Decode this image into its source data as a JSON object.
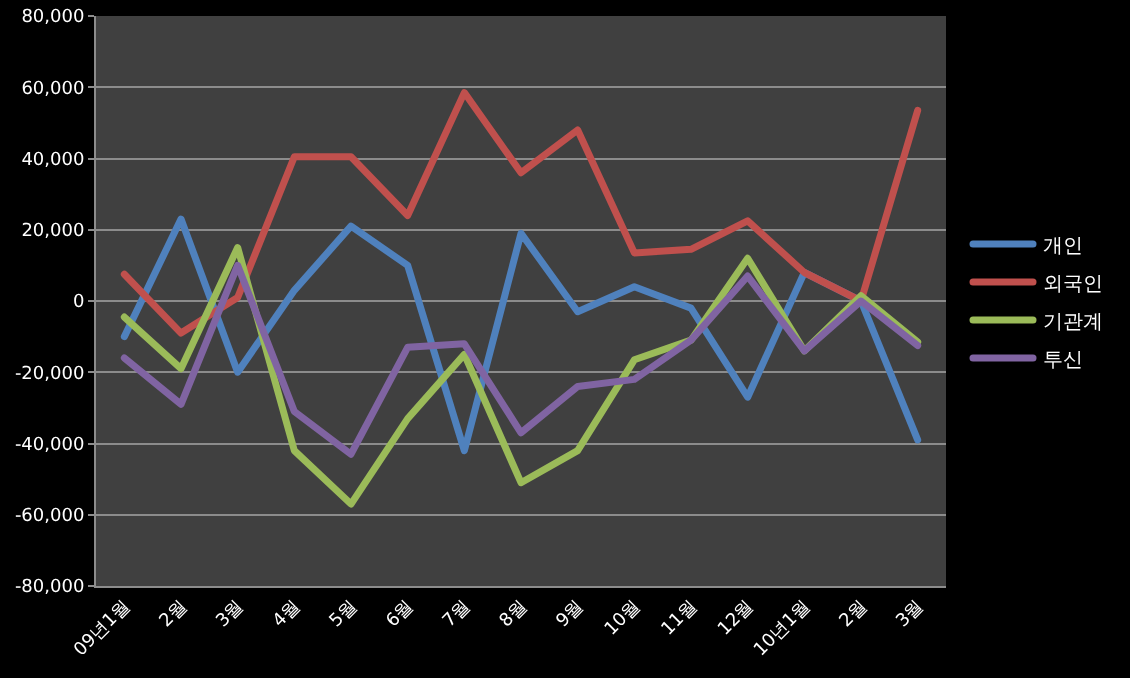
{
  "chart_data": {
    "type": "line",
    "categories": [
      "09년1월",
      "2월",
      "3월",
      "4월",
      "5월",
      "6월",
      "7월",
      "8월",
      "9월",
      "10월",
      "11월",
      "12월",
      "10년1월",
      "2월",
      "3월"
    ],
    "series": [
      {
        "name": "개인",
        "color": "#4f81bd",
        "values": [
          -10000,
          23000,
          -20000,
          3000,
          21000,
          10000,
          -42000,
          19000,
          -3000,
          4000,
          -2000,
          -27000,
          8000,
          0,
          -39000
        ]
      },
      {
        "name": "외국인",
        "color": "#c0504d",
        "values": [
          7500,
          -9000,
          1000,
          40500,
          40500,
          24000,
          58500,
          36000,
          48000,
          13500,
          14500,
          22500,
          8000,
          0,
          53500
        ]
      },
      {
        "name": "기관계",
        "color": "#9bbb59",
        "values": [
          -4500,
          -19000,
          15000,
          -42000,
          -57000,
          -33000,
          -15000,
          -51000,
          -42000,
          -16500,
          -11000,
          12000,
          -14000,
          1500,
          -11500
        ]
      },
      {
        "name": "투신",
        "color": "#8064a2",
        "values": [
          -16000,
          -29000,
          10000,
          -31000,
          -43000,
          -13000,
          -12000,
          -37000,
          -24000,
          -22000,
          -11000,
          7000,
          -14000,
          0,
          -12500
        ]
      }
    ],
    "ylim": [
      -80000,
      80000
    ],
    "yticks": [
      {
        "value": -80000,
        "label": "-80,000"
      },
      {
        "value": -60000,
        "label": "-60,000"
      },
      {
        "value": -40000,
        "label": "-40,000"
      },
      {
        "value": -20000,
        "label": "-20,000"
      },
      0,
      {
        "value": 20000,
        "label": "20,000"
      },
      {
        "value": 40000,
        "label": "40,000"
      },
      {
        "value": 60000,
        "label": "60,000"
      },
      {
        "value": 80000,
        "label": "80,000"
      }
    ],
    "grid": "y",
    "legend": "right",
    "marker": "none",
    "line_style": "solid"
  }
}
